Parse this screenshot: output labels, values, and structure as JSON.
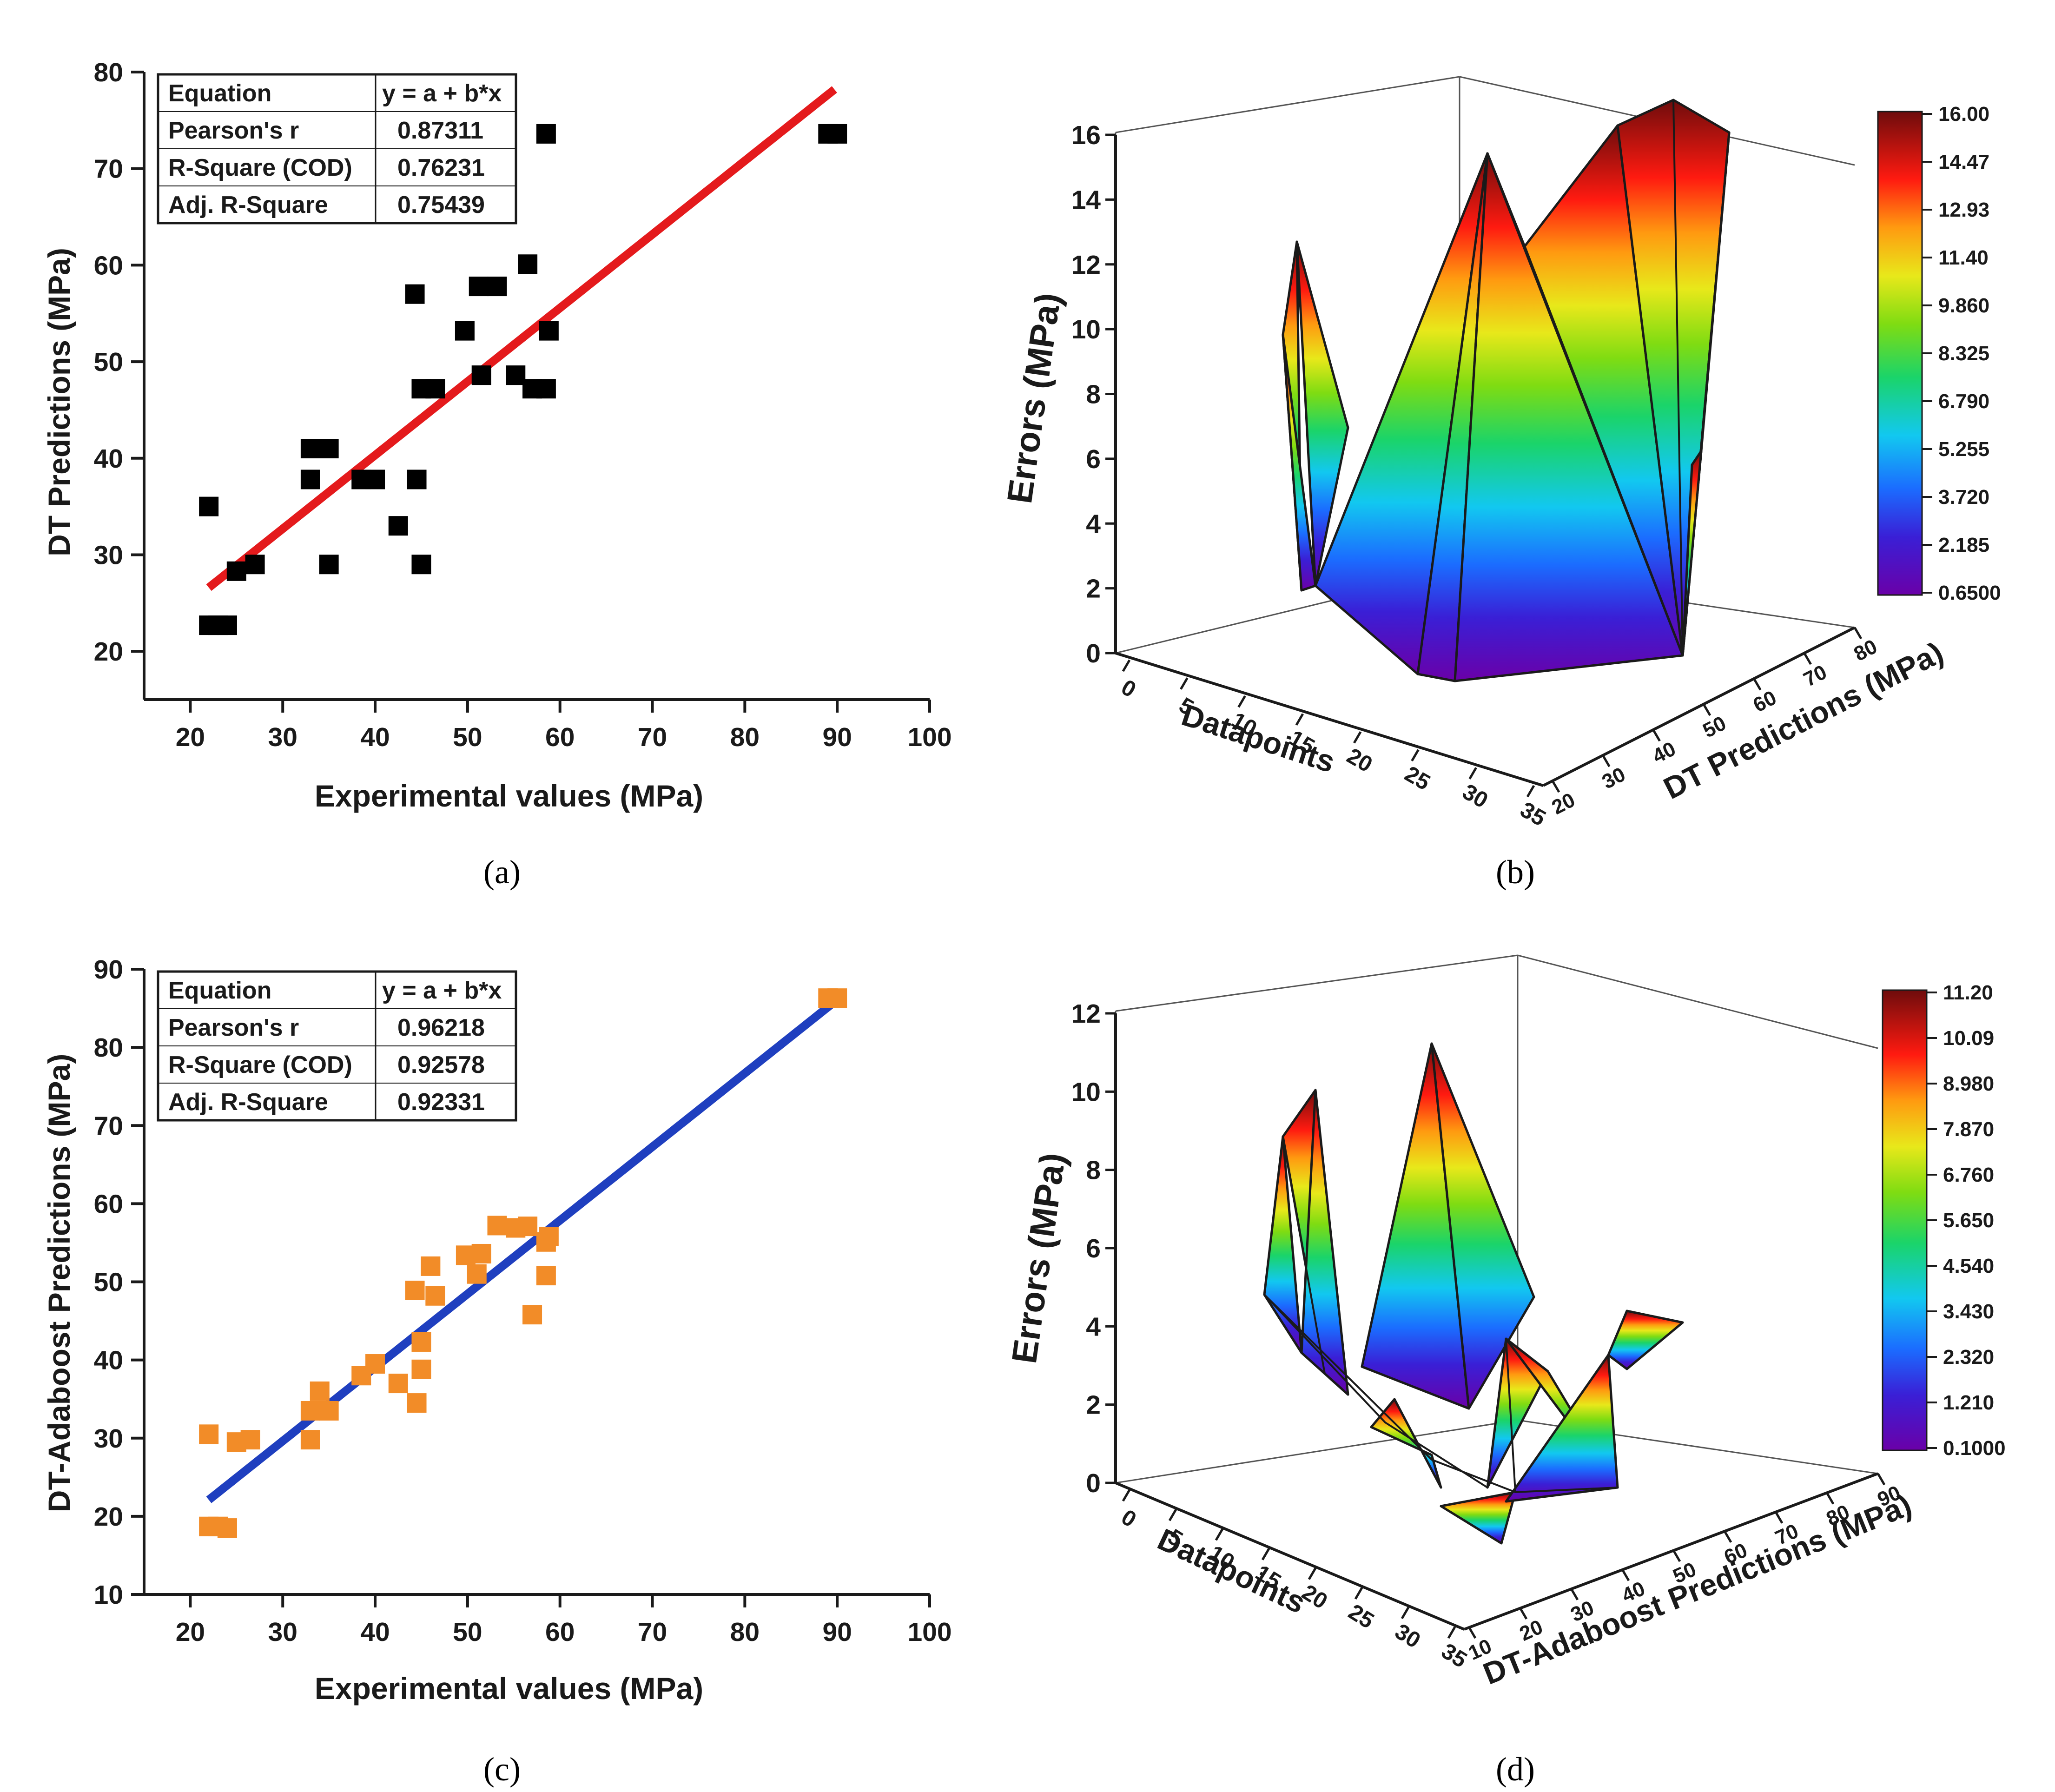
{
  "chart_data": [
    {
      "id": "a",
      "type": "scatter",
      "panel_label": "(a)",
      "xlabel": "Experimental values (MPa)",
      "ylabel": "DT Predictions (MPa)",
      "xlim": [
        15,
        100
      ],
      "ylim": [
        15,
        80
      ],
      "xticks": [
        "20",
        "30",
        "40",
        "50",
        "60",
        "70",
        "80",
        "90",
        "100"
      ],
      "yticks": [
        "20",
        "30",
        "40",
        "50",
        "60",
        "70",
        "80"
      ],
      "marker_color": "#000000",
      "line_color": "#e41a1c",
      "fit_line": [
        [
          22,
          26.6
        ],
        [
          89.7,
          78.2
        ]
      ],
      "stats_table": [
        [
          "Equation",
          "y = a + b*x"
        ],
        [
          "Pearson's r",
          "0.87311"
        ],
        [
          "R-Square (COD)",
          "0.76231"
        ],
        [
          "Adj. R-Square",
          "0.75439"
        ]
      ],
      "points": [
        [
          22,
          35
        ],
        [
          22,
          22.7
        ],
        [
          23,
          22.7
        ],
        [
          24,
          22.7
        ],
        [
          25,
          28.3
        ],
        [
          27,
          29
        ],
        [
          33,
          41
        ],
        [
          33,
          37.8
        ],
        [
          34,
          41
        ],
        [
          35,
          41
        ],
        [
          35,
          29
        ],
        [
          38.5,
          37.8
        ],
        [
          40,
          37.8
        ],
        [
          42.5,
          33
        ],
        [
          44.3,
          57
        ],
        [
          44.5,
          37.8
        ],
        [
          45,
          47.2
        ],
        [
          45,
          29
        ],
        [
          46.5,
          47.2
        ],
        [
          49.7,
          53.2
        ],
        [
          51.2,
          57.8
        ],
        [
          51.5,
          48.6
        ],
        [
          53.2,
          57.8
        ],
        [
          55.2,
          48.6
        ],
        [
          56.5,
          60.1
        ],
        [
          57,
          47.2
        ],
        [
          58.5,
          47.2
        ],
        [
          58.5,
          73.6
        ],
        [
          58.8,
          53.2
        ],
        [
          89,
          73.6
        ],
        [
          90,
          73.6
        ]
      ]
    },
    {
      "id": "b",
      "type": "surface3d",
      "panel_label": "(b)",
      "xlabel": "Datapoints",
      "ylabel": "DT Predictions (MPa)",
      "zlabel": "Errors (MPa)",
      "xticks": [
        "0",
        "5",
        "10",
        "15",
        "20",
        "25",
        "30",
        "35"
      ],
      "yticks": [
        "20",
        "30",
        "40",
        "50",
        "60",
        "70",
        "80"
      ],
      "zticks": [
        "0",
        "2",
        "4",
        "6",
        "8",
        "10",
        "12",
        "14",
        "16"
      ],
      "zlim": [
        0,
        16
      ],
      "colorbar_ticks": [
        "16.00",
        "14.47",
        "12.93",
        "11.40",
        "9.860",
        "8.325",
        "6.790",
        "5.255",
        "3.720",
        "2.185",
        "0.6500"
      ]
    },
    {
      "id": "c",
      "type": "scatter",
      "panel_label": "(c)",
      "xlabel": "Experimental values (MPa)",
      "ylabel": "DT-Adaboost Predictions (MPa)",
      "xlim": [
        15,
        100
      ],
      "ylim": [
        10,
        90
      ],
      "xticks": [
        "20",
        "30",
        "40",
        "50",
        "60",
        "70",
        "80",
        "90",
        "100"
      ],
      "yticks": [
        "10",
        "20",
        "30",
        "40",
        "50",
        "60",
        "70",
        "80",
        "90"
      ],
      "marker_color": "#f28c28",
      "line_color": "#1f3fbf",
      "fit_line": [
        [
          22,
          22.1
        ],
        [
          90,
          86.1
        ]
      ],
      "stats_table": [
        [
          "Equation",
          "y = a + b*x"
        ],
        [
          "Pearson's r",
          "0.96218"
        ],
        [
          "R-Square (COD)",
          "0.92578"
        ],
        [
          "Adj. R-Square",
          "0.92331"
        ]
      ],
      "points": [
        [
          22,
          30.5
        ],
        [
          22,
          18.7
        ],
        [
          23,
          18.7
        ],
        [
          24,
          18.5
        ],
        [
          25,
          29.5
        ],
        [
          26.5,
          29.8
        ],
        [
          33,
          29.8
        ],
        [
          33,
          33.5
        ],
        [
          34,
          36
        ],
        [
          35,
          33.5
        ],
        [
          38.5,
          38
        ],
        [
          40,
          39.5
        ],
        [
          42.5,
          37
        ],
        [
          44.3,
          48.9
        ],
        [
          44.5,
          34.5
        ],
        [
          45,
          38.8
        ],
        [
          45,
          42.3
        ],
        [
          46,
          52
        ],
        [
          46.5,
          48.2
        ],
        [
          49.8,
          53.4
        ],
        [
          51,
          51
        ],
        [
          51.5,
          53.6
        ],
        [
          53.2,
          57.2
        ],
        [
          55.2,
          56.9
        ],
        [
          56.5,
          57.1
        ],
        [
          57,
          45.8
        ],
        [
          58.5,
          50.8
        ],
        [
          58.5,
          55.1
        ],
        [
          58.8,
          55.8
        ],
        [
          89,
          86.3
        ],
        [
          90,
          86.3
        ]
      ]
    },
    {
      "id": "d",
      "type": "surface3d",
      "panel_label": "(d)",
      "xlabel": "Datapoints",
      "ylabel": "DT-Adaboost Predictions (MPa)",
      "zlabel": "Errors (MPa)",
      "xticks": [
        "0",
        "5",
        "10",
        "15",
        "20",
        "25",
        "30",
        "35"
      ],
      "yticks": [
        "10",
        "20",
        "30",
        "40",
        "50",
        "60",
        "70",
        "80",
        "90"
      ],
      "zticks": [
        "0",
        "2",
        "4",
        "6",
        "8",
        "10",
        "12"
      ],
      "zlim": [
        0,
        12
      ],
      "colorbar_ticks": [
        "11.20",
        "10.09",
        "8.980",
        "7.870",
        "6.760",
        "5.650",
        "4.540",
        "3.430",
        "2.320",
        "1.210",
        "0.1000"
      ]
    }
  ]
}
